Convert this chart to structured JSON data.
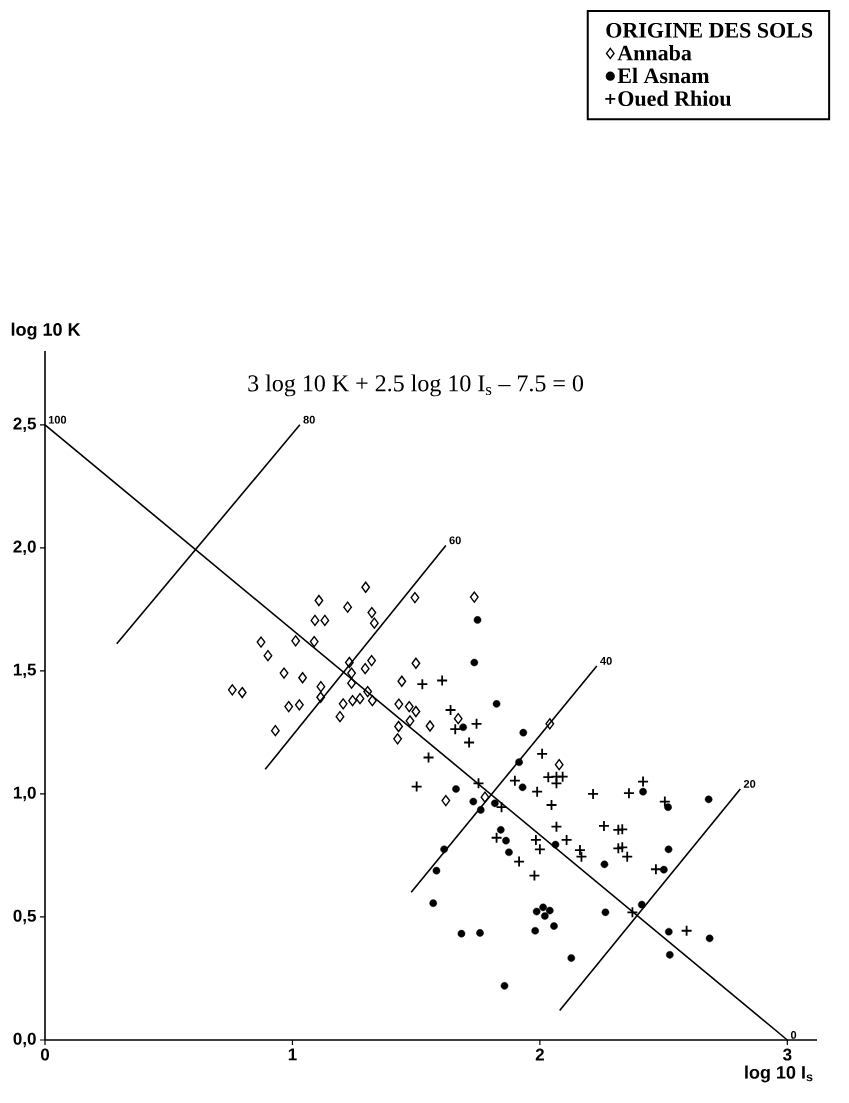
{
  "chart_data": {
    "type": "scatter",
    "xlabel": "log 10 I$_{s}$",
    "ylabel": "log 10 K",
    "legend_title": "ORIGINE DES SOLS",
    "legend": "top right",
    "xlim": [
      0,
      3.12
    ],
    "ylim": [
      0,
      2.8
    ],
    "xticks": [
      0,
      1,
      2,
      3
    ],
    "yticks": [
      {
        "value": 0,
        "label": "0,0"
      },
      {
        "value": 0.5,
        "label": "0,5"
      },
      {
        "value": 1,
        "label": "1,0"
      },
      {
        "value": 1.5,
        "label": "1,5"
      },
      {
        "value": 2,
        "label": "2,0"
      },
      {
        "value": 2.5,
        "label": "2,5"
      }
    ],
    "annotations": [
      "3 log 10 K + 2.5 log 10 I$_{s}$ – 7.5 = 0",
      {
        "text": "100",
        "x": 0,
        "y": 2.5
      },
      {
        "text": "80",
        "x": 1.03,
        "y": 2.5
      },
      {
        "text": "60",
        "x": 1.62,
        "y": 2.01
      },
      {
        "text": "40",
        "x": 2.23,
        "y": 1.52
      },
      {
        "text": "20",
        "x": 2.81,
        "y": 1.02
      },
      {
        "text": "0",
        "x": 3.0,
        "y": 0
      }
    ],
    "series": [
      {
        "name": "Annaba",
        "marker": "diamond",
        "color": "#000000",
        "x": [
          1.296,
          1.107,
          1.223,
          1.321,
          1.091,
          1.131,
          1.331,
          1.495,
          1.735,
          0.873,
          1.013,
          1.088,
          0.901,
          1.23,
          1.32,
          1.294,
          1.499,
          0.966,
          1.041,
          1.239,
          1.239,
          1.442,
          0.757,
          0.797,
          1.115,
          1.114,
          1.304,
          1.323,
          0.985,
          1.028,
          1.205,
          1.243,
          1.273,
          1.43,
          1.472,
          1.499,
          1.192,
          1.475,
          1.429,
          1.556,
          1.425,
          0.931,
          1.67,
          2.04,
          2.078,
          1.62,
          1.778
        ],
        "values": [
          1.84,
          1.786,
          1.759,
          1.737,
          1.705,
          1.705,
          1.694,
          1.798,
          1.8,
          1.617,
          1.622,
          1.619,
          1.562,
          1.534,
          1.542,
          1.509,
          1.531,
          1.491,
          1.472,
          1.491,
          1.45,
          1.458,
          1.423,
          1.412,
          1.436,
          1.393,
          1.416,
          1.379,
          1.355,
          1.362,
          1.366,
          1.379,
          1.387,
          1.365,
          1.355,
          1.335,
          1.314,
          1.297,
          1.274,
          1.276,
          1.224,
          1.257,
          1.306,
          1.285,
          1.119,
          0.973,
          0.987
        ]
      },
      {
        "name": "El Asnam",
        "marker": "circle",
        "color": "#000000",
        "x": [
          1.748,
          1.735,
          1.69,
          1.825,
          1.933,
          1.916,
          1.93,
          1.661,
          1.731,
          1.761,
          1.818,
          1.842,
          1.863,
          1.875,
          2.063,
          2.261,
          1.613,
          1.582,
          1.569,
          1.683,
          1.758,
          1.987,
          2.013,
          2.04,
          2.02,
          1.981,
          2.057,
          2.265,
          2.127,
          1.857,
          2.417,
          2.518,
          2.682,
          2.52,
          2.501,
          2.412,
          2.521,
          2.686,
          2.525
        ],
        "values": [
          1.707,
          1.534,
          1.271,
          1.366,
          1.249,
          1.129,
          1.027,
          1.02,
          0.969,
          0.935,
          0.962,
          0.854,
          0.81,
          0.763,
          0.794,
          0.714,
          0.775,
          0.688,
          0.556,
          0.432,
          0.435,
          0.522,
          0.539,
          0.526,
          0.504,
          0.444,
          0.463,
          0.519,
          0.333,
          0.22,
          1.009,
          0.946,
          0.978,
          0.775,
          0.692,
          0.55,
          0.44,
          0.413,
          0.346
        ]
      },
      {
        "name": "Oued Rhiou",
        "marker": "cross",
        "color": "#000000",
        "x": [
          1.525,
          1.605,
          1.639,
          1.658,
          1.744,
          1.714,
          1.55,
          1.502,
          2.009,
          1.899,
          2.034,
          2.067,
          2.092,
          2.067,
          1.989,
          2.047,
          2.067,
          1.845,
          1.752,
          1.825,
          2.215,
          2.259,
          2.317,
          2.317,
          1.984,
          2.0,
          2.108,
          2.162,
          2.168,
          1.916,
          1.978,
          2.36,
          2.417,
          2.505,
          2.333,
          2.333,
          2.353,
          2.469,
          2.374,
          2.593
        ],
        "values": [
          1.446,
          1.461,
          1.341,
          1.263,
          1.285,
          1.209,
          1.148,
          1.03,
          1.163,
          1.054,
          1.068,
          1.07,
          1.07,
          1.043,
          1.009,
          0.955,
          0.867,
          0.946,
          1.043,
          0.822,
          1.0,
          0.87,
          0.854,
          0.779,
          0.813,
          0.775,
          0.813,
          0.772,
          0.745,
          0.725,
          0.668,
          1.003,
          1.05,
          0.969,
          0.856,
          0.783,
          0.745,
          0.694,
          0.519,
          0.444
        ]
      },
      {
        "type": "line",
        "marker": "none",
        "color": "#000000",
        "x": [
          0,
          3
        ],
        "values": [
          2.5,
          0
        ]
      },
      {
        "type": "line",
        "marker": "none",
        "color": "#000000",
        "x": [
          0.29,
          1.03
        ],
        "values": [
          1.61,
          2.5
        ]
      },
      {
        "type": "line",
        "marker": "none",
        "color": "#000000",
        "x": [
          0.89,
          1.62
        ],
        "values": [
          1.1,
          2.01
        ]
      },
      {
        "type": "line",
        "marker": "none",
        "color": "#000000",
        "x": [
          1.48,
          2.23
        ],
        "values": [
          0.6,
          1.52
        ]
      },
      {
        "type": "line",
        "marker": "none",
        "color": "#000000",
        "x": [
          2.08,
          2.81
        ],
        "values": [
          0.12,
          1.02
        ]
      }
    ]
  }
}
